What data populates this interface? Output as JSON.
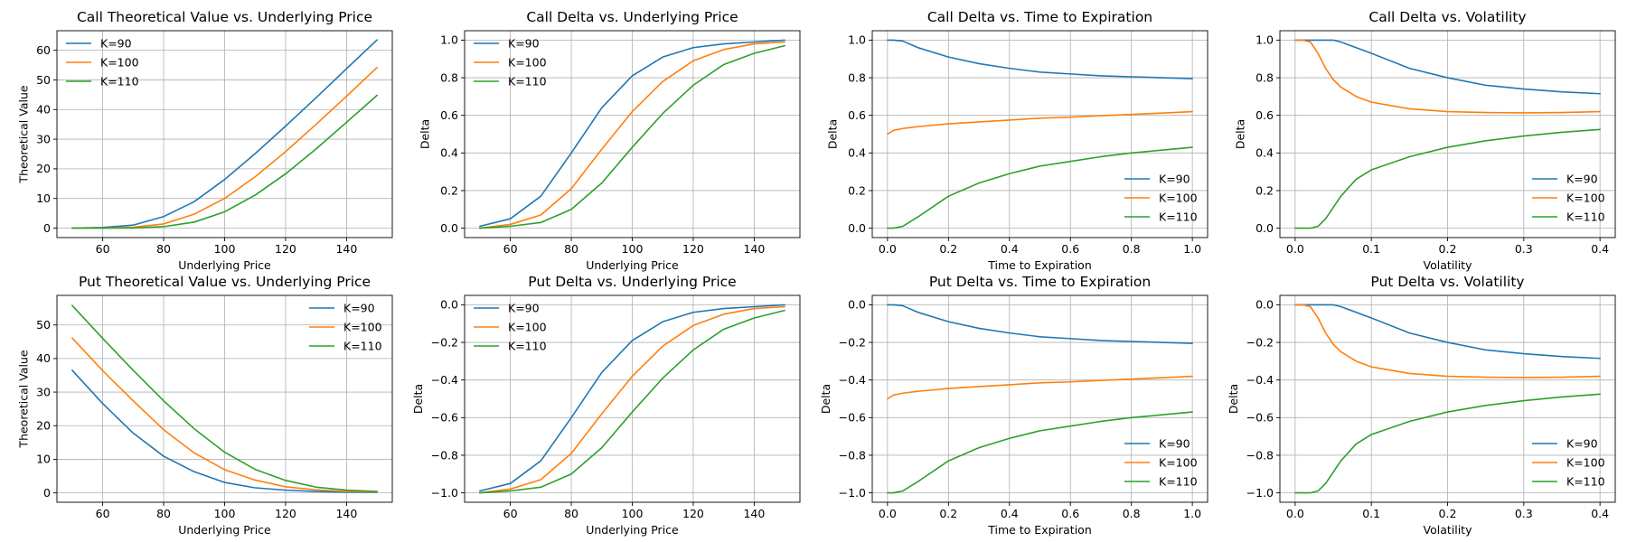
{
  "colors": {
    "K=90": "#1f77b4",
    "K=100": "#ff7f0e",
    "K=110": "#2ca02c",
    "grid": "#b0b0b0"
  },
  "chart_data": [
    {
      "type": "line",
      "title": "Call Theoretical Value vs. Underlying Price",
      "xlabel": "Underlying Price",
      "ylabel": "Theoretical Value",
      "xlim": [
        45,
        155
      ],
      "ylim": [
        -3.2,
        66.6
      ],
      "xticks": [
        60,
        80,
        100,
        120,
        140
      ],
      "xtick_labels": [
        "60",
        "80",
        "100",
        "120",
        "140"
      ],
      "yticks": [
        0,
        10,
        20,
        30,
        40,
        50,
        60
      ],
      "ytick_labels": [
        "0",
        "10",
        "20",
        "30",
        "40",
        "50",
        "60"
      ],
      "grid": true,
      "legend_position": "upper-left",
      "x": [
        50,
        60,
        70,
        80,
        90,
        100,
        110,
        120,
        130,
        140,
        150
      ],
      "series": [
        {
          "name": "K=90",
          "values": [
            0.0,
            0.2,
            1.0,
            3.9,
            8.9,
            16.4,
            25.1,
            34.4,
            44.0,
            53.8,
            63.5
          ]
        },
        {
          "name": "K=100",
          "values": [
            0.0,
            0.0,
            0.3,
            1.4,
            4.7,
            10.0,
            17.3,
            25.8,
            35.0,
            44.5,
            54.2
          ]
        },
        {
          "name": "K=110",
          "values": [
            0.0,
            0.0,
            0.0,
            0.5,
            2.0,
            5.5,
            11.1,
            18.3,
            26.7,
            35.7,
            44.8
          ]
        }
      ]
    },
    {
      "type": "line",
      "title": "Call Delta vs. Underlying Price",
      "xlabel": "Underlying Price",
      "ylabel": "Delta",
      "xlim": [
        45,
        155
      ],
      "ylim": [
        -0.05,
        1.05
      ],
      "xticks": [
        60,
        80,
        100,
        120,
        140
      ],
      "xtick_labels": [
        "60",
        "80",
        "100",
        "120",
        "140"
      ],
      "yticks": [
        0,
        0.2,
        0.4,
        0.6,
        0.8,
        1.0
      ],
      "ytick_labels": [
        "0.0",
        "0.2",
        "0.4",
        "0.6",
        "0.8",
        "1.0"
      ],
      "grid": true,
      "legend_position": "upper-left",
      "x": [
        50,
        60,
        70,
        80,
        90,
        100,
        110,
        120,
        130,
        140,
        150
      ],
      "series": [
        {
          "name": "K=90",
          "values": [
            0.01,
            0.05,
            0.17,
            0.4,
            0.64,
            0.81,
            0.91,
            0.96,
            0.98,
            0.99,
            1.0
          ]
        },
        {
          "name": "K=100",
          "values": [
            0.0,
            0.02,
            0.07,
            0.21,
            0.42,
            0.62,
            0.78,
            0.89,
            0.95,
            0.98,
            0.99
          ]
        },
        {
          "name": "K=110",
          "values": [
            0.0,
            0.01,
            0.03,
            0.1,
            0.24,
            0.43,
            0.61,
            0.76,
            0.87,
            0.93,
            0.97
          ]
        }
      ]
    },
    {
      "type": "line",
      "title": "Call Delta vs. Time to Expiration",
      "xlabel": "Time to Expiration",
      "ylabel": "Delta",
      "xlim": [
        -0.05,
        1.05
      ],
      "ylim": [
        -0.05,
        1.05
      ],
      "xticks": [
        0,
        0.2,
        0.4,
        0.6,
        0.8,
        1.0
      ],
      "xtick_labels": [
        "0.0",
        "0.2",
        "0.4",
        "0.6",
        "0.8",
        "1.0"
      ],
      "yticks": [
        0,
        0.2,
        0.4,
        0.6,
        0.8,
        1.0
      ],
      "ytick_labels": [
        "0.0",
        "0.2",
        "0.4",
        "0.6",
        "0.8",
        "1.0"
      ],
      "grid": true,
      "legend_position": "lower-right",
      "x": [
        0.0,
        0.02,
        0.05,
        0.1,
        0.2,
        0.3,
        0.4,
        0.5,
        0.6,
        0.7,
        0.8,
        0.9,
        1.0
      ],
      "series": [
        {
          "name": "K=90",
          "values": [
            1.0,
            1.0,
            0.995,
            0.96,
            0.91,
            0.875,
            0.85,
            0.83,
            0.82,
            0.81,
            0.805,
            0.8,
            0.795
          ]
        },
        {
          "name": "K=100",
          "values": [
            0.5,
            0.52,
            0.53,
            0.54,
            0.555,
            0.565,
            0.575,
            0.585,
            0.59,
            0.598,
            0.605,
            0.612,
            0.62
          ]
        },
        {
          "name": "K=110",
          "values": [
            0.0,
            0.0,
            0.01,
            0.06,
            0.17,
            0.24,
            0.29,
            0.33,
            0.355,
            0.38,
            0.4,
            0.415,
            0.43
          ]
        }
      ]
    },
    {
      "type": "line",
      "title": "Call Delta vs. Volatility",
      "xlabel": "Volatility",
      "ylabel": "Delta",
      "xlim": [
        -0.02,
        0.42
      ],
      "ylim": [
        -0.05,
        1.05
      ],
      "xticks": [
        0,
        0.1,
        0.2,
        0.3,
        0.4
      ],
      "xtick_labels": [
        "0.0",
        "0.1",
        "0.2",
        "0.3",
        "0.4"
      ],
      "yticks": [
        0,
        0.2,
        0.4,
        0.6,
        0.8,
        1.0
      ],
      "ytick_labels": [
        "0.0",
        "0.2",
        "0.4",
        "0.6",
        "0.8",
        "1.0"
      ],
      "grid": true,
      "legend_position": "lower-right",
      "x": [
        0.0,
        0.01,
        0.02,
        0.03,
        0.04,
        0.05,
        0.06,
        0.08,
        0.1,
        0.15,
        0.2,
        0.25,
        0.3,
        0.35,
        0.4
      ],
      "series": [
        {
          "name": "K=90",
          "values": [
            1.0,
            1.0,
            1.0,
            1.0,
            1.0,
            1.0,
            0.99,
            0.96,
            0.93,
            0.85,
            0.8,
            0.76,
            0.74,
            0.725,
            0.715
          ]
        },
        {
          "name": "K=100",
          "values": [
            1.0,
            1.0,
            0.99,
            0.93,
            0.85,
            0.79,
            0.75,
            0.7,
            0.67,
            0.635,
            0.62,
            0.615,
            0.613,
            0.615,
            0.62
          ]
        },
        {
          "name": "K=110",
          "values": [
            0.0,
            0.0,
            0.0,
            0.01,
            0.05,
            0.11,
            0.17,
            0.26,
            0.31,
            0.38,
            0.43,
            0.465,
            0.49,
            0.51,
            0.525
          ]
        }
      ]
    },
    {
      "type": "line",
      "title": "Put Theoretical Value vs. Underlying Price",
      "xlabel": "Underlying Price",
      "ylabel": "Theoretical Value",
      "xlim": [
        45,
        155
      ],
      "ylim": [
        -2.8,
        58.8
      ],
      "xticks": [
        60,
        80,
        100,
        120,
        140
      ],
      "xtick_labels": [
        "60",
        "80",
        "100",
        "120",
        "140"
      ],
      "yticks": [
        0,
        10,
        20,
        30,
        40,
        50
      ],
      "ytick_labels": [
        "0",
        "10",
        "20",
        "30",
        "40",
        "50"
      ],
      "grid": true,
      "legend_position": "upper-right",
      "x": [
        50,
        60,
        70,
        80,
        90,
        100,
        110,
        120,
        130,
        140,
        150
      ],
      "series": [
        {
          "name": "K=90",
          "values": [
            36.5,
            26.6,
            17.8,
            10.9,
            6.3,
            3.1,
            1.5,
            0.8,
            0.4,
            0.2,
            0.2
          ]
        },
        {
          "name": "K=100",
          "values": [
            46.1,
            36.4,
            27.4,
            18.8,
            11.9,
            6.9,
            3.8,
            1.8,
            0.9,
            0.4,
            0.3
          ]
        },
        {
          "name": "K=110",
          "values": [
            55.8,
            46.0,
            36.5,
            27.4,
            19.1,
            12.1,
            7.0,
            3.7,
            1.7,
            0.8,
            0.4
          ]
        }
      ]
    },
    {
      "type": "line",
      "title": "Put Delta vs. Underlying Price",
      "xlabel": "Underlying Price",
      "ylabel": "Delta",
      "xlim": [
        45,
        155
      ],
      "ylim": [
        -1.05,
        0.05
      ],
      "xticks": [
        60,
        80,
        100,
        120,
        140
      ],
      "xtick_labels": [
        "60",
        "80",
        "100",
        "120",
        "140"
      ],
      "yticks": [
        0,
        -0.2,
        -0.4,
        -0.6,
        -0.8,
        -1.0
      ],
      "ytick_labels": [
        "0.0",
        "−0.2",
        "−0.4",
        "−0.6",
        "−0.8",
        "−1.0"
      ],
      "grid": true,
      "legend_position": "upper-left",
      "x": [
        50,
        60,
        70,
        80,
        90,
        100,
        110,
        120,
        130,
        140,
        150
      ],
      "series": [
        {
          "name": "K=90",
          "values": [
            -0.99,
            -0.95,
            -0.83,
            -0.6,
            -0.36,
            -0.19,
            -0.09,
            -0.04,
            -0.02,
            -0.01,
            0.0
          ]
        },
        {
          "name": "K=100",
          "values": [
            -1.0,
            -0.98,
            -0.93,
            -0.79,
            -0.58,
            -0.38,
            -0.22,
            -0.11,
            -0.05,
            -0.02,
            -0.01
          ]
        },
        {
          "name": "K=110",
          "values": [
            -1.0,
            -0.99,
            -0.97,
            -0.9,
            -0.76,
            -0.57,
            -0.39,
            -0.24,
            -0.13,
            -0.07,
            -0.03
          ]
        }
      ]
    },
    {
      "type": "line",
      "title": "Put Delta vs. Time to Expiration",
      "xlabel": "Time to Expiration",
      "ylabel": "Delta",
      "xlim": [
        -0.05,
        1.05
      ],
      "ylim": [
        -1.05,
        0.05
      ],
      "xticks": [
        0,
        0.2,
        0.4,
        0.6,
        0.8,
        1.0
      ],
      "xtick_labels": [
        "0.0",
        "0.2",
        "0.4",
        "0.6",
        "0.8",
        "1.0"
      ],
      "yticks": [
        0,
        -0.2,
        -0.4,
        -0.6,
        -0.8,
        -1.0
      ],
      "ytick_labels": [
        "0.0",
        "−0.2",
        "−0.4",
        "−0.6",
        "−0.8",
        "−1.0"
      ],
      "grid": true,
      "legend_position": "lower-right",
      "x": [
        0.0,
        0.02,
        0.05,
        0.1,
        0.2,
        0.3,
        0.4,
        0.5,
        0.6,
        0.7,
        0.8,
        0.9,
        1.0
      ],
      "series": [
        {
          "name": "K=90",
          "values": [
            0.0,
            0.0,
            -0.005,
            -0.04,
            -0.09,
            -0.125,
            -0.15,
            -0.17,
            -0.18,
            -0.19,
            -0.195,
            -0.2,
            -0.205
          ]
        },
        {
          "name": "K=100",
          "values": [
            -0.5,
            -0.48,
            -0.47,
            -0.46,
            -0.445,
            -0.435,
            -0.425,
            -0.415,
            -0.41,
            -0.402,
            -0.395,
            -0.388,
            -0.38
          ]
        },
        {
          "name": "K=110",
          "values": [
            -1.0,
            -1.0,
            -0.99,
            -0.94,
            -0.83,
            -0.76,
            -0.71,
            -0.67,
            -0.645,
            -0.62,
            -0.6,
            -0.585,
            -0.57
          ]
        }
      ]
    },
    {
      "type": "line",
      "title": "Put Delta vs. Volatility",
      "xlabel": "Volatility",
      "ylabel": "Delta",
      "xlim": [
        -0.02,
        0.42
      ],
      "ylim": [
        -1.05,
        0.05
      ],
      "xticks": [
        0,
        0.1,
        0.2,
        0.3,
        0.4
      ],
      "xtick_labels": [
        "0.0",
        "0.1",
        "0.2",
        "0.3",
        "0.4"
      ],
      "yticks": [
        0,
        -0.2,
        -0.4,
        -0.6,
        -0.8,
        -1.0
      ],
      "ytick_labels": [
        "0.0",
        "−0.2",
        "−0.4",
        "−0.6",
        "−0.8",
        "−1.0"
      ],
      "grid": true,
      "legend_position": "lower-right",
      "x": [
        0.0,
        0.01,
        0.02,
        0.03,
        0.04,
        0.05,
        0.06,
        0.08,
        0.1,
        0.15,
        0.2,
        0.25,
        0.3,
        0.35,
        0.4
      ],
      "series": [
        {
          "name": "K=90",
          "values": [
            0.0,
            0.0,
            0.0,
            0.0,
            0.0,
            0.0,
            -0.01,
            -0.04,
            -0.07,
            -0.15,
            -0.2,
            -0.24,
            -0.26,
            -0.275,
            -0.285
          ]
        },
        {
          "name": "K=100",
          "values": [
            0.0,
            0.0,
            -0.01,
            -0.07,
            -0.15,
            -0.21,
            -0.25,
            -0.3,
            -0.33,
            -0.365,
            -0.38,
            -0.385,
            -0.387,
            -0.385,
            -0.38
          ]
        },
        {
          "name": "K=110",
          "values": [
            -1.0,
            -1.0,
            -1.0,
            -0.99,
            -0.95,
            -0.89,
            -0.83,
            -0.74,
            -0.69,
            -0.62,
            -0.57,
            -0.535,
            -0.51,
            -0.49,
            -0.475
          ]
        }
      ]
    }
  ]
}
